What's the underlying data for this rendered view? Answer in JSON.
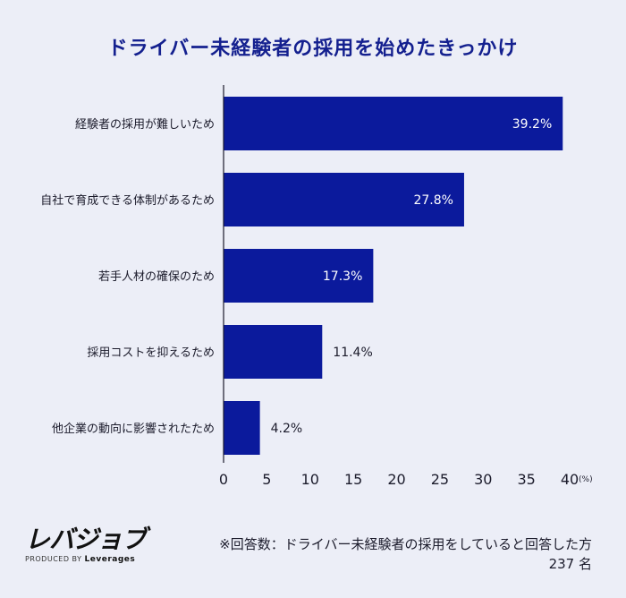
{
  "chart_data": {
    "type": "bar",
    "orientation": "horizontal",
    "title": "ドライバー未経験者の採用を始めたきっかけ",
    "categories": [
      "経験者の採用が難しいため",
      "自社で育成できる体制があるため",
      "若手人材の確保のため",
      "採用コストを抑えるため",
      "他企業の動向に影響されたため"
    ],
    "values": [
      39.2,
      27.8,
      17.3,
      11.4,
      4.2
    ],
    "value_labels": [
      "39.2%",
      "27.8%",
      "17.3%",
      "11.4%",
      "4.2%"
    ],
    "xlim": [
      0,
      40
    ],
    "xticks": [
      "0",
      "5",
      "10",
      "15",
      "20",
      "25",
      "30",
      "35",
      "40"
    ],
    "x_unit": "(%)",
    "bar_color": "#0b1a9c",
    "grid": false
  },
  "logo": {
    "name": "レバジョブ",
    "produced_by": "PRODUCED BY",
    "company": "Leverages"
  },
  "footnote": {
    "line1": "※回答数：ドライバー未経験者の採用をしていると回答した方",
    "line2": "237 名"
  }
}
